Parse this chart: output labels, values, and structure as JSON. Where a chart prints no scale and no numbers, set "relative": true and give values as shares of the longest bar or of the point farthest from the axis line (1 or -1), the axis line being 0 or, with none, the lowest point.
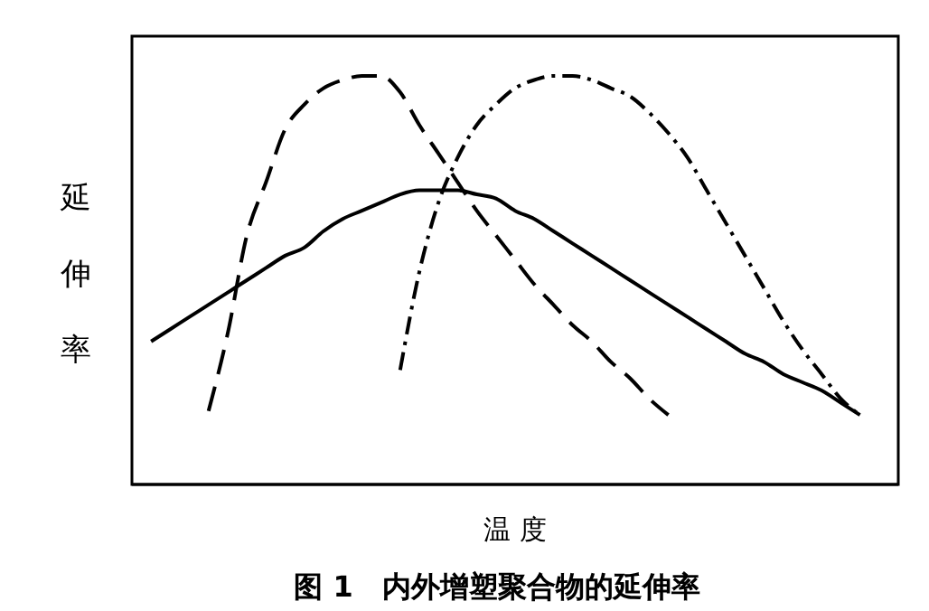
{
  "chart_data": {
    "type": "line",
    "relative": true,
    "xlabel": "温 度",
    "ylabel": "延伸率",
    "title": "图 1　内外增塑聚合物的延伸率",
    "categories": [
      null,
      null,
      null,
      null,
      null,
      null,
      null,
      null,
      null,
      null,
      null,
      null,
      null,
      null,
      null,
      null,
      null,
      null,
      null,
      null,
      null,
      null,
      null,
      null,
      null,
      null,
      null,
      null,
      null,
      null,
      null,
      null,
      null,
      null,
      null,
      null,
      null,
      null,
      null,
      null,
      null
    ],
    "series": [
      {
        "color": "#000000",
        "line_style": "solid",
        "values": [
          null,
          0.35,
          0.38,
          0.41,
          0.44,
          0.47,
          0.5,
          0.53,
          0.56,
          0.58,
          0.62,
          0.65,
          0.67,
          0.69,
          0.71,
          0.72,
          0.72,
          0.72,
          0.71,
          0.7,
          0.67,
          0.65,
          0.62,
          0.59,
          0.56,
          0.53,
          0.5,
          0.47,
          0.44,
          0.41,
          0.38,
          0.35,
          0.32,
          0.3,
          0.27,
          0.25,
          0.23,
          0.2,
          0.17,
          null,
          null
        ]
      },
      {
        "color": "#000000",
        "line_style": "dashed",
        "values": [
          null,
          null,
          null,
          null,
          0.18,
          0.37,
          0.61,
          0.74,
          0.87,
          0.93,
          0.97,
          0.99,
          1,
          1,
          0.96,
          0.88,
          0.81,
          0.74,
          0.67,
          0.61,
          0.55,
          0.49,
          0.44,
          0.39,
          0.35,
          0.3,
          0.26,
          0.21,
          0.17,
          null,
          null,
          null,
          null,
          null,
          null,
          null,
          null,
          null,
          null,
          null,
          null
        ]
      },
      {
        "color": "#000000",
        "line_style": "dotted",
        "values": [
          null,
          null,
          null,
          null,
          null,
          null,
          null,
          null,
          null,
          null,
          null,
          null,
          null,
          null,
          0.28,
          0.52,
          0.69,
          0.8,
          0.88,
          0.93,
          0.97,
          0.99,
          1,
          1,
          0.99,
          0.97,
          0.95,
          0.91,
          0.86,
          0.8,
          0.72,
          0.64,
          0.56,
          0.48,
          0.4,
          0.33,
          0.27,
          0.21,
          0.17,
          null,
          null
        ]
      }
    ]
  }
}
